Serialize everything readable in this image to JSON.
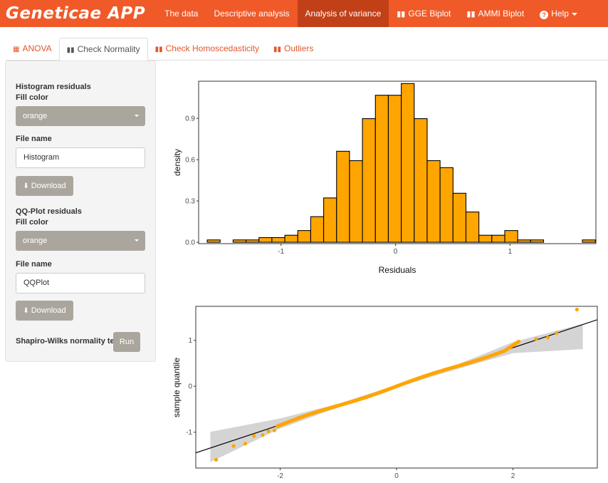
{
  "navbar": {
    "brand": "Geneticae APP",
    "items": [
      {
        "label": "The data"
      },
      {
        "label": "Descriptive analysis"
      },
      {
        "label": "Analysis of variance"
      },
      {
        "label": "GGE Biplot"
      },
      {
        "label": "AMMI Biplot"
      },
      {
        "label": "Help"
      }
    ]
  },
  "tabs": [
    {
      "label": "ANOVA"
    },
    {
      "label": "Check Normality"
    },
    {
      "label": "Check Homoscedasticity"
    },
    {
      "label": "Outliers"
    }
  ],
  "sidebar": {
    "hist_title": "Histogram residuals",
    "hist_fill_label": "Fill color",
    "hist_fill_value": "orange",
    "hist_file_label": "File name",
    "hist_file_value": "Histogram",
    "hist_download": "Download",
    "qq_title": "QQ-Plot residuals",
    "qq_fill_label": "Fill color",
    "qq_fill_value": "orange",
    "qq_file_label": "File name",
    "qq_file_value": "QQPlot",
    "qq_download": "Download",
    "shapiro_label": "Shapiro-Wilks normality test",
    "run_label": "Run"
  },
  "colors": {
    "accent": "#f05a28",
    "fill": "#ffa500",
    "button": "#aba69d"
  },
  "chart_data": [
    {
      "type": "histogram",
      "xlabel": "Residuals",
      "ylabel": "density",
      "xlim": [
        -1.72,
        1.75
      ],
      "ylim": [
        -0.01,
        1.17
      ],
      "xticks": [
        -1,
        0,
        1
      ],
      "yticks": [
        0.0,
        0.3,
        0.6,
        0.9
      ],
      "ytick_labels": [
        "0.0",
        "0.3",
        "0.6",
        "0.9"
      ],
      "bin_width": 0.113,
      "bin_start": -1.645,
      "values": [
        0.017,
        0,
        0.017,
        0.017,
        0.034,
        0.034,
        0.051,
        0.085,
        0.186,
        0.322,
        0.661,
        0.593,
        0.898,
        1.068,
        1.068,
        1.153,
        0.898,
        0.593,
        0.542,
        0.356,
        0.22,
        0.051,
        0.051,
        0.085,
        0.017,
        0.017,
        0,
        0,
        0,
        0.017
      ]
    },
    {
      "type": "scatter",
      "xlabel": "",
      "ylabel": "sample quantile",
      "xlim": [
        -3.45,
        3.45
      ],
      "ylim": [
        -1.78,
        1.74
      ],
      "xticks": [
        -2,
        0,
        2
      ],
      "yticks": [
        -1,
        0,
        1
      ],
      "reference_line": {
        "intercept": 0.0,
        "slope": 0.42
      },
      "band": {
        "x": [
          -3.2,
          -2.0,
          -1.0,
          0.0,
          1.0,
          2.0,
          3.2
        ],
        "lower": [
          -1.65,
          -0.92,
          -0.46,
          -0.03,
          0.36,
          0.72,
          0.81
        ],
        "upper": [
          -0.99,
          -0.7,
          -0.38,
          0.03,
          0.45,
          0.96,
          1.36
        ]
      },
      "outlier_points": {
        "x": [
          -3.1,
          -2.8,
          -2.6,
          -2.45,
          -2.3,
          -2.2,
          -2.1,
          2.4,
          2.6,
          2.75,
          3.1
        ],
        "y": [
          -1.6,
          -1.3,
          -1.25,
          -1.08,
          -1.06,
          -0.98,
          -0.96,
          1.03,
          1.06,
          1.16,
          1.67
        ]
      }
    }
  ]
}
